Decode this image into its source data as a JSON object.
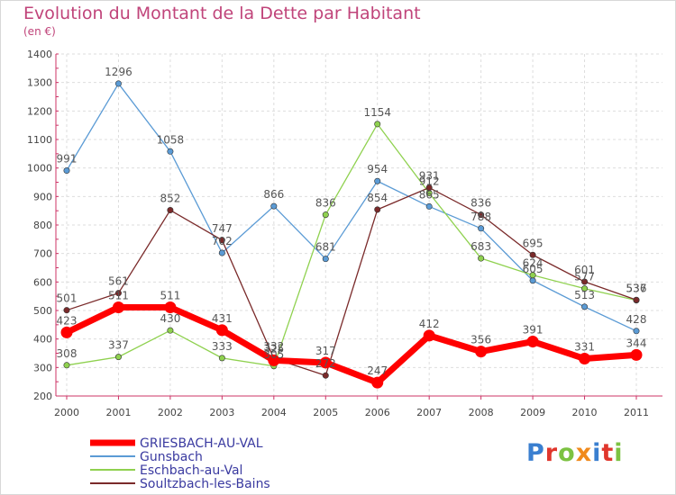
{
  "title": "Evolution du Montant de la Dette par Habitant",
  "subtitle": "(en €)",
  "logo_text": "Proxiti",
  "chart_data": {
    "type": "line",
    "title": "Evolution du Montant de la Dette par Habitant",
    "subtitle": "(en €)",
    "x": [
      "2000",
      "2001",
      "2002",
      "2003",
      "2004",
      "2005",
      "2006",
      "2007",
      "2008",
      "2009",
      "2010",
      "2011"
    ],
    "ylim": [
      200,
      1400
    ],
    "yticks": [
      200,
      300,
      400,
      500,
      600,
      700,
      800,
      900,
      1000,
      1100,
      1200,
      1300,
      1400
    ],
    "grid": true,
    "legend_position": "bottom-left",
    "series": [
      {
        "name": "GRIESBACH-AU-VAL",
        "color": "#ff0000",
        "values": [
          423,
          511,
          511,
          431,
          325,
          317,
          247,
          412,
          356,
          391,
          331,
          344
        ]
      },
      {
        "name": "Gunsbach",
        "color": "#5b9bd5",
        "values": [
          991,
          1296,
          1058,
          702,
          866,
          681,
          954,
          865,
          788,
          605,
          513,
          428
        ]
      },
      {
        "name": "Eschbach-au-Val",
        "color": "#8fd14f",
        "values": [
          308,
          337,
          430,
          333,
          305,
          836,
          1154,
          912,
          683,
          624,
          577,
          536
        ]
      },
      {
        "name": "Soultzbach-les-Bains",
        "color": "#7a2a2a",
        "values": [
          501,
          561,
          852,
          747,
          332,
          272,
          854,
          931,
          836,
          695,
          601,
          537
        ]
      }
    ]
  }
}
